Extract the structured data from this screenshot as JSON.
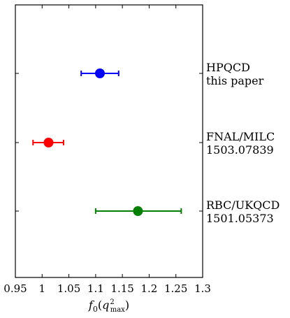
{
  "chart_data": {
    "type": "scatter",
    "xlabel": "f0(q²max)",
    "xlim": [
      0.95,
      1.3
    ],
    "x_ticks": [
      "0.95",
      "1",
      "1.05",
      "1.1",
      "1.15",
      "1.2",
      "1.25",
      "1.3"
    ],
    "x_tick_values": [
      0.95,
      1.0,
      1.05,
      1.1,
      1.15,
      1.2,
      1.25,
      1.3
    ],
    "grid": false,
    "points": [
      {
        "label_line1": "HPQCD",
        "label_line2": "this paper",
        "value": 1.108,
        "err_low": 1.073,
        "err_high": 1.143,
        "color": "#0000ff"
      },
      {
        "label_line1": "FNAL/MILC",
        "label_line2": "1503.07839",
        "value": 1.012,
        "err_low": 0.983,
        "err_high": 1.04,
        "color": "#ff0000"
      },
      {
        "label_line1": "RBC/UKQCD",
        "label_line2": "1501.05373",
        "value": 1.179,
        "err_low": 1.1,
        "err_high": 1.26,
        "color": "#008000"
      }
    ]
  }
}
